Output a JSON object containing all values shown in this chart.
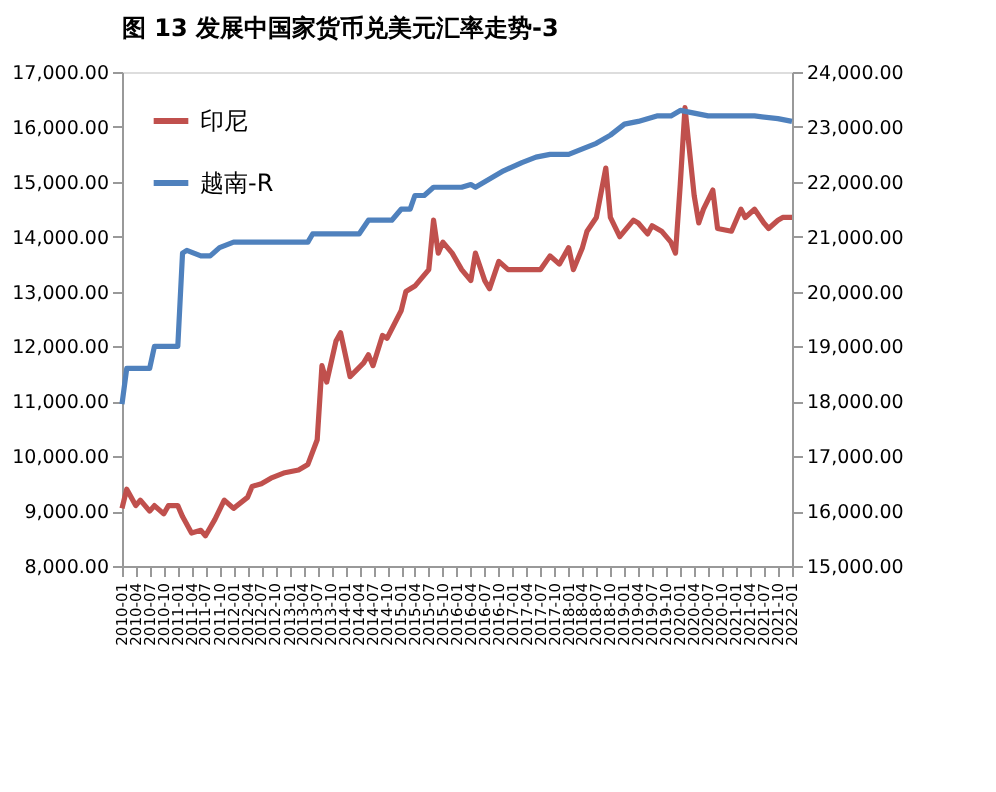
{
  "chart_data": {
    "type": "line",
    "title": "图 13  发展中国家货币兑美元汇率走势-3",
    "series": [
      {
        "name": "印尼",
        "color": "#c0504d",
        "axis": "y",
        "x": [
          "2010-01",
          "2010-02",
          "2010-04",
          "2010-05",
          "2010-07",
          "2010-08",
          "2010-10",
          "2010-11",
          "2011-01",
          "2011-02",
          "2011-04",
          "2011-06",
          "2011-07",
          "2011-09",
          "2011-11",
          "2012-01",
          "2012-04",
          "2012-05",
          "2012-07",
          "2012-09",
          "2012-12",
          "2013-03",
          "2013-05",
          "2013-07",
          "2013-08",
          "2013-09",
          "2013-11",
          "2013-12",
          "2014-02",
          "2014-05",
          "2014-06",
          "2014-07",
          "2014-09",
          "2014-10",
          "2015-01",
          "2015-02",
          "2015-04",
          "2015-07",
          "2015-08",
          "2015-09",
          "2015-10",
          "2015-12",
          "2016-02",
          "2016-04",
          "2016-05",
          "2016-07",
          "2016-08",
          "2016-10",
          "2016-12",
          "2017-07",
          "2017-09",
          "2017-11",
          "2018-01",
          "2018-02",
          "2018-04",
          "2018-05",
          "2018-07",
          "2018-09",
          "2018-10",
          "2018-12",
          "2019-03",
          "2019-04",
          "2019-06",
          "2019-07",
          "2019-09",
          "2019-11",
          "2019-12",
          "2020-01",
          "2020-02",
          "2020-04",
          "2020-05",
          "2020-06",
          "2020-08",
          "2020-09",
          "2020-12",
          "2021-02",
          "2021-03",
          "2021-05",
          "2021-07",
          "2021-08",
          "2021-10",
          "2021-11",
          "2022-01"
        ],
        "values": [
          9050,
          9400,
          9100,
          9200,
          9000,
          9100,
          8950,
          9100,
          9100,
          8900,
          8600,
          8650,
          8550,
          8850,
          9200,
          9050,
          9250,
          9450,
          9500,
          9600,
          9700,
          9750,
          9850,
          10300,
          11650,
          11350,
          12100,
          12250,
          11450,
          11700,
          11850,
          11650,
          12200,
          12150,
          12650,
          13000,
          13100,
          13400,
          14300,
          13700,
          13900,
          13700,
          13400,
          13200,
          13700,
          13200,
          13050,
          13550,
          13400,
          13400,
          13650,
          13500,
          13800,
          13400,
          13800,
          14100,
          14350,
          15250,
          14350,
          14000,
          14300,
          14250,
          14050,
          14200,
          14100,
          13900,
          13700,
          14950,
          16350,
          14750,
          14250,
          14500,
          14850,
          14150,
          14100,
          14500,
          14350,
          14500,
          14250,
          14150,
          14300,
          14350,
          14350
        ]
      },
      {
        "name": "越南-R",
        "color": "#4f81bd",
        "axis": "y2",
        "x": [
          "2010-01",
          "2010-02",
          "2010-07",
          "2010-08",
          "2011-01",
          "2011-02",
          "2011-03",
          "2011-06",
          "2011-08",
          "2011-10",
          "2012-01",
          "2013-05",
          "2013-06",
          "2014-04",
          "2014-06",
          "2014-11",
          "2015-01",
          "2015-03",
          "2015-04",
          "2015-06",
          "2015-08",
          "2016-02",
          "2016-04",
          "2016-05",
          "2016-08",
          "2016-11",
          "2017-03",
          "2017-06",
          "2017-09",
          "2018-01",
          "2018-04",
          "2018-07",
          "2018-10",
          "2019-01",
          "2019-04",
          "2019-08",
          "2019-11",
          "2020-01",
          "2020-04",
          "2020-07",
          "2020-11",
          "2021-02",
          "2021-05",
          "2021-10",
          "2022-01"
        ],
        "values": [
          17950,
          18600,
          18600,
          19000,
          19000,
          20700,
          20750,
          20650,
          20650,
          20800,
          20900,
          20900,
          21050,
          21050,
          21300,
          21300,
          21500,
          21500,
          21750,
          21750,
          21900,
          21900,
          21950,
          21900,
          22050,
          22200,
          22350,
          22450,
          22500,
          22500,
          22600,
          22700,
          22850,
          23050,
          23100,
          23200,
          23200,
          23300,
          23250,
          23200,
          23200,
          23200,
          23200,
          23150,
          23100
        ]
      }
    ],
    "xlim": [
      "2010-01",
      "2022-01"
    ],
    "xticks": [
      "2010-01",
      "2010-04",
      "2010-07",
      "2010-10",
      "2011-01",
      "2011-04",
      "2011-07",
      "2011-10",
      "2012-01",
      "2012-04",
      "2012-07",
      "2012-10",
      "2013-01",
      "2013-04",
      "2013-07",
      "2013-10",
      "2014-01",
      "2014-04",
      "2014-07",
      "2014-10",
      "2015-01",
      "2015-04",
      "2015-07",
      "2015-10",
      "2016-01",
      "2016-04",
      "2016-07",
      "2016-10",
      "2017-01",
      "2017-04",
      "2017-07",
      "2017-10",
      "2018-01",
      "2018-04",
      "2018-07",
      "2018-10",
      "2019-01",
      "2019-04",
      "2019-07",
      "2019-10",
      "2020-01",
      "2020-04",
      "2020-07",
      "2020-10",
      "2021-01",
      "2021-04",
      "2021-07",
      "2021-10",
      "2022-01"
    ],
    "ylim": [
      8000,
      17000
    ],
    "yticks": [
      {
        "value": 8000,
        "label": "8,000.00"
      },
      {
        "value": 9000,
        "label": "9,000.00"
      },
      {
        "value": 10000,
        "label": "10,000.00"
      },
      {
        "value": 11000,
        "label": "11,000.00"
      },
      {
        "value": 12000,
        "label": "12,000.00"
      },
      {
        "value": 13000,
        "label": "13,000.00"
      },
      {
        "value": 14000,
        "label": "14,000.00"
      },
      {
        "value": 15000,
        "label": "15,000.00"
      },
      {
        "value": 16000,
        "label": "16,000.00"
      },
      {
        "value": 17000,
        "label": "17,000.00"
      }
    ],
    "y2lim": [
      15000,
      24000
    ],
    "y2ticks": [
      {
        "value": 15000,
        "label": "15,000.00"
      },
      {
        "value": 16000,
        "label": "16,000.00"
      },
      {
        "value": 17000,
        "label": "17,000.00"
      },
      {
        "value": 18000,
        "label": "18,000.00"
      },
      {
        "value": 19000,
        "label": "19,000.00"
      },
      {
        "value": 20000,
        "label": "20,000.00"
      },
      {
        "value": 21000,
        "label": "21,000.00"
      },
      {
        "value": 22000,
        "label": "22,000.00"
      },
      {
        "value": 23000,
        "label": "23,000.00"
      },
      {
        "value": 24000,
        "label": "24,000.00"
      }
    ],
    "grid": false,
    "legend": "top left",
    "marker": "none",
    "line_style": "solid"
  }
}
